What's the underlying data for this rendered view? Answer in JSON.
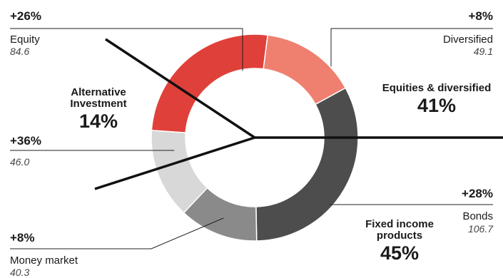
{
  "chart_data": {
    "type": "pie",
    "variant": "donut",
    "slices": [
      {
        "id": "equity",
        "label": "Equity",
        "value": 84.6,
        "value_text": "84.6",
        "change": "+26%",
        "color": "#e0403a"
      },
      {
        "id": "diversified",
        "label": "Diversified",
        "value": 49.1,
        "value_text": "49.1",
        "change": "+8%",
        "color": "#ef8070"
      },
      {
        "id": "bonds",
        "label": "Bonds",
        "value": 106.7,
        "value_text": "106.7",
        "change": "+28%",
        "color": "#4d4d4d"
      },
      {
        "id": "money_market",
        "label": "Money market",
        "value": 40.3,
        "value_text": "40.3",
        "change": "+8%",
        "color": "#8a8a8a"
      },
      {
        "id": "alternative",
        "label": "",
        "value": 46.0,
        "value_text": "46.0",
        "change": "+36%",
        "color": "#d8d8d8"
      }
    ],
    "groups": [
      {
        "id": "alternative_investment",
        "line1": "Alternative",
        "line2": "Investment",
        "share": "14%"
      },
      {
        "id": "equities_diversified",
        "line1": "Equities & diversified",
        "line2": "",
        "share": "41%"
      },
      {
        "id": "fixed_income",
        "line1": "Fixed income",
        "line2": "products",
        "share": "45%"
      }
    ]
  }
}
